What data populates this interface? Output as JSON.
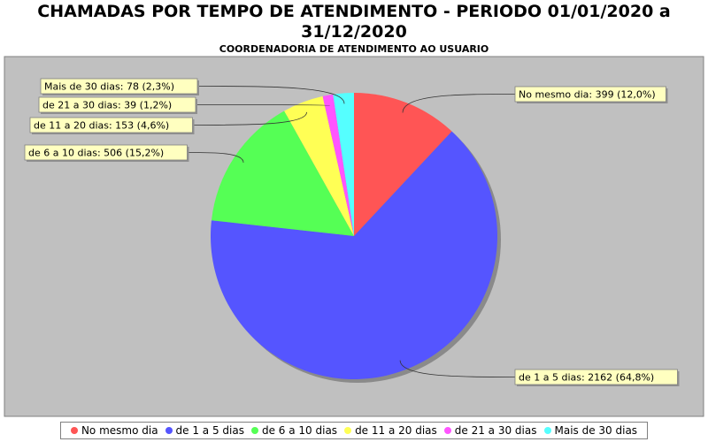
{
  "title": "CHAMADAS POR TEMPO DE ATENDIMENTO - PERIODO 01/01/2020 a 31/12/2020",
  "subtitle": "COORDENADORIA DE ATENDIMENTO AO USUARIO",
  "chart_data": {
    "type": "pie",
    "title": "CHAMADAS POR TEMPO DE ATENDIMENTO - PERIODO 01/01/2020 a 31/12/2020",
    "subtitle": "COORDENADORIA DE ATENDIMENTO AO USUARIO",
    "categories": [
      "No mesmo dia",
      "de 1 a 5 dias",
      "de 6 a 10 dias",
      "de 11 a 20 dias",
      "de 21 a 30 dias",
      "Mais de 30 dias"
    ],
    "values": [
      399,
      2162,
      506,
      153,
      39,
      78
    ],
    "percentages": [
      "12,0%",
      "64,8%",
      "15,2%",
      "4,6%",
      "1,2%",
      "2,3%"
    ],
    "labels": [
      "No mesmo dia: 399 (12,0%)",
      "de 1 a 5 dias: 2162 (64,8%)",
      "de 6 a 10 dias: 506 (15,2%)",
      "de 11 a 20 dias: 153 (4,6%)",
      "de 21 a 30 dias: 39 (1,2%)",
      "Mais de 30 dias: 78 (2,3%)"
    ],
    "colors": [
      "#ff5555",
      "#5555ff",
      "#55ff55",
      "#ffff55",
      "#ff55ff",
      "#55ffff"
    ],
    "legend_position": "bottom"
  }
}
